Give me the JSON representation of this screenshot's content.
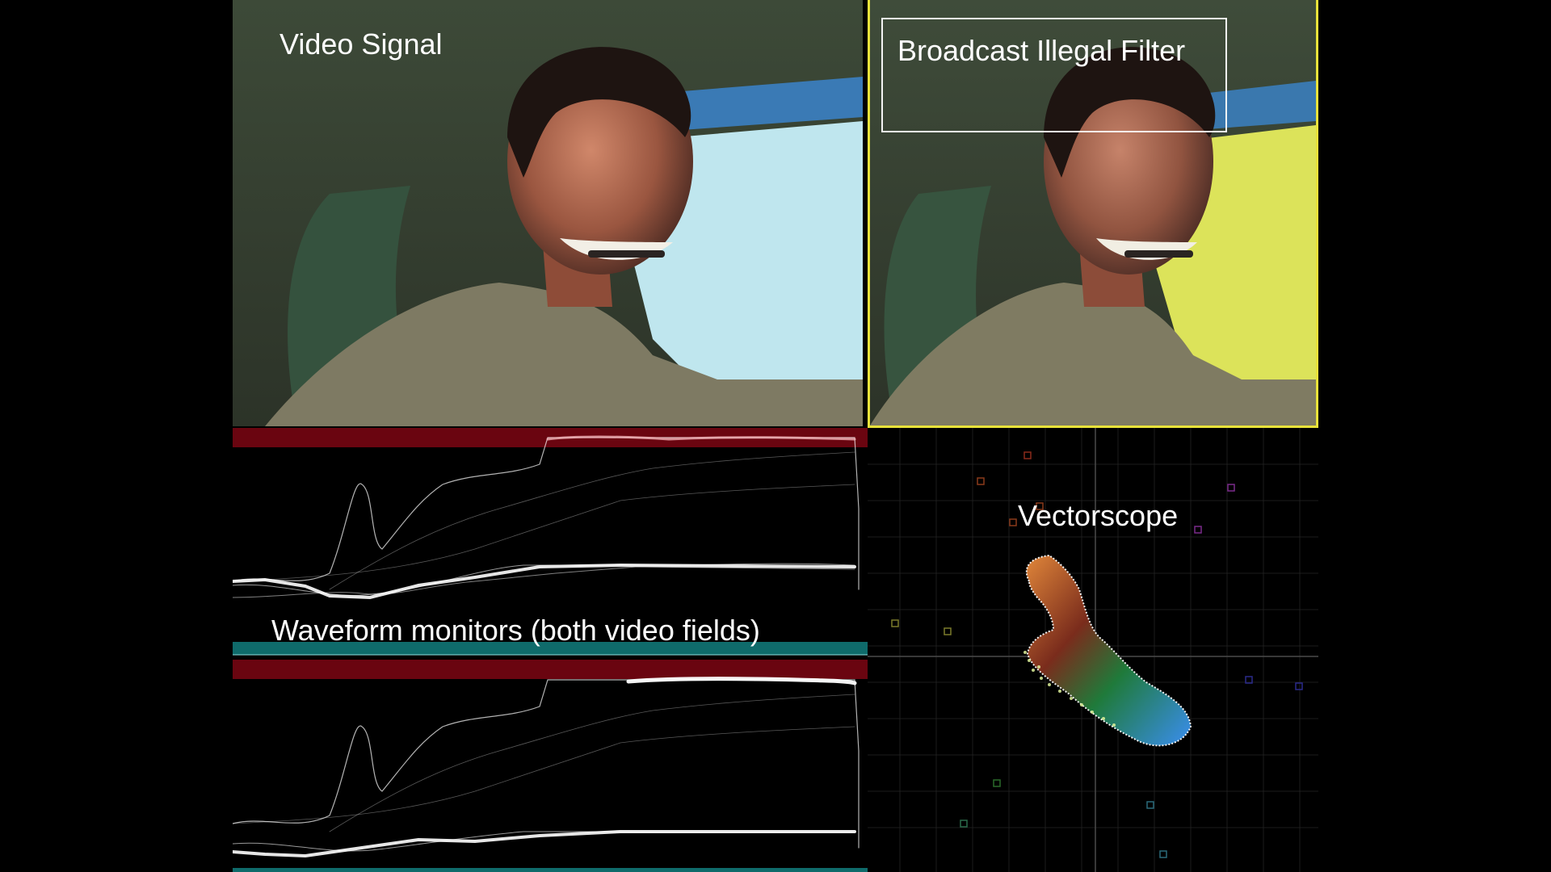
{
  "labels": {
    "video_signal": "Video Signal",
    "broadcast_filter": "Broadcast Illegal Filter",
    "waveform": "Waveform monitors (both video fields)",
    "vectorscope": "Vectorscope"
  },
  "colors": {
    "background": "#000000",
    "filter_border": "#e8e23a",
    "illegal_band": "#6a0510",
    "safe_band": "#0f6b6b",
    "sky_original": "#bfe6ee",
    "sky_filtered": "#dce35a"
  }
}
